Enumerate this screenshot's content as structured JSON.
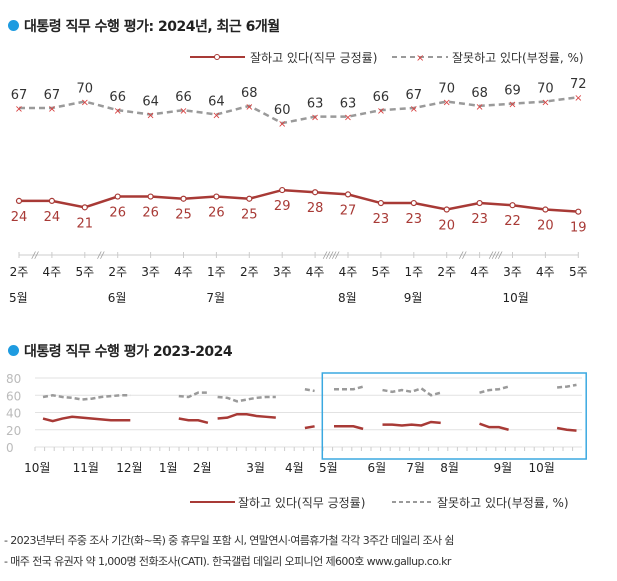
{
  "colors": {
    "accent": "#1e9be0",
    "positive": "#a83a36",
    "negative": "#9a9a9a",
    "box": "#3aa8e0"
  },
  "chart_data": [
    {
      "type": "line",
      "title": "대통령 직무 수행 평가: 2024년, 최근 6개월",
      "legend": [
        "잘하고 있다(직무 긍정률)",
        "잘못하고 있다(부정률, %)"
      ],
      "legend_placement": "top-right",
      "x": [
        "2주",
        "4주",
        "5주",
        "2주",
        "3주",
        "4주",
        "1주",
        "2주",
        "3주",
        "4주",
        "4주",
        "5주",
        "1주",
        "2주",
        "4주",
        "3주",
        "4주",
        "5주"
      ],
      "months": [
        {
          "label": "5월",
          "index": 0
        },
        {
          "label": "6월",
          "index": 3
        },
        {
          "label": "7월",
          "index": 6
        },
        {
          "label": "8월",
          "index": 10
        },
        {
          "label": "9월",
          "index": 12
        },
        {
          "label": "10월",
          "index": 15
        }
      ],
      "breaks": [
        {
          "after": 0,
          "mark": "//"
        },
        {
          "after": 2,
          "mark": "//"
        },
        {
          "after": 9,
          "mark": "/////"
        },
        {
          "after": 13,
          "mark": "//"
        },
        {
          "after": 14,
          "mark": "////"
        }
      ],
      "series": [
        {
          "name": "잘하고 있다(직무 긍정률)",
          "values": [
            24,
            24,
            21,
            26,
            26,
            25,
            26,
            25,
            29,
            28,
            27,
            23,
            23,
            20,
            23,
            22,
            20,
            19
          ]
        },
        {
          "name": "잘못하고 있다(부정률, %)",
          "values": [
            67,
            67,
            70,
            66,
            64,
            66,
            64,
            68,
            60,
            63,
            63,
            66,
            67,
            70,
            68,
            69,
            70,
            72
          ]
        }
      ]
    },
    {
      "type": "line",
      "title": "대통령 직무 수행 평가 2023-2024",
      "ylim": [
        0,
        80
      ],
      "yticks": [
        "0",
        "20",
        "40",
        "60",
        "80"
      ],
      "months": [
        {
          "label": "10월",
          "index": -1
        },
        {
          "label": "11월",
          "index": 4
        },
        {
          "label": "12월",
          "index": 8.5
        },
        {
          "label": "1월",
          "index": 12.5
        },
        {
          "label": "2월",
          "index": 16
        },
        {
          "label": "3월",
          "index": 21.5
        },
        {
          "label": "4월",
          "index": 25.5
        },
        {
          "label": "5월",
          "index": 29
        },
        {
          "label": "6월",
          "index": 34
        },
        {
          "label": "7월",
          "index": 38
        },
        {
          "label": "8월",
          "index": 41.5
        },
        {
          "label": "9월",
          "index": 47
        },
        {
          "label": "10월",
          "index": 51
        }
      ],
      "highlight_range": [
        29,
        56
      ],
      "legend": [
        "잘하고 있다(직무 긍정률)",
        "잘못하고 있다(부정률, %)"
      ],
      "legend_placement": "bottom-right",
      "segments": [
        {
          "start": 0,
          "positive": [
            33,
            30,
            33,
            35,
            34,
            33,
            32,
            31,
            31,
            31
          ],
          "negative": [
            58,
            60,
            58,
            57,
            55,
            56,
            58,
            59,
            60,
            60
          ]
        },
        {
          "start": 14,
          "positive": [
            33,
            31,
            31,
            28
          ],
          "negative": [
            59,
            58,
            63,
            63
          ]
        },
        {
          "start": 18,
          "positive": [
            33,
            34,
            38,
            38,
            36,
            35,
            34
          ],
          "negative": [
            58,
            57,
            53,
            55,
            57,
            58,
            58
          ]
        },
        {
          "start": 27,
          "positive": [
            22,
            24
          ],
          "negative": [
            67,
            65
          ]
        },
        {
          "start": 30,
          "positive": [
            24,
            24,
            24,
            21
          ],
          "negative": [
            67,
            67,
            67,
            70
          ]
        },
        {
          "start": 35,
          "positive": [
            26,
            26,
            25,
            26,
            25,
            29,
            28
          ],
          "negative": [
            66,
            64,
            66,
            64,
            68,
            60,
            63
          ]
        },
        {
          "start": 45,
          "positive": [
            27,
            23,
            23,
            20
          ],
          "negative": [
            63,
            66,
            67,
            70
          ]
        },
        {
          "start": 53,
          "positive": [
            22,
            20,
            19
          ],
          "negative": [
            69,
            70,
            72
          ]
        }
      ]
    }
  ],
  "notes": [
    "- 2023년부터 주중 조사 기간(화~목) 중 휴무일 포함 시, 연말연시·여름휴가철 각각 3주간 데일리 조사 쉼",
    "- 매주 전국 유권자 약 1,000명 전화조사(CATI). 한국갤럽 데일리 오피니언 제600호 www.gallup.co.kr"
  ]
}
